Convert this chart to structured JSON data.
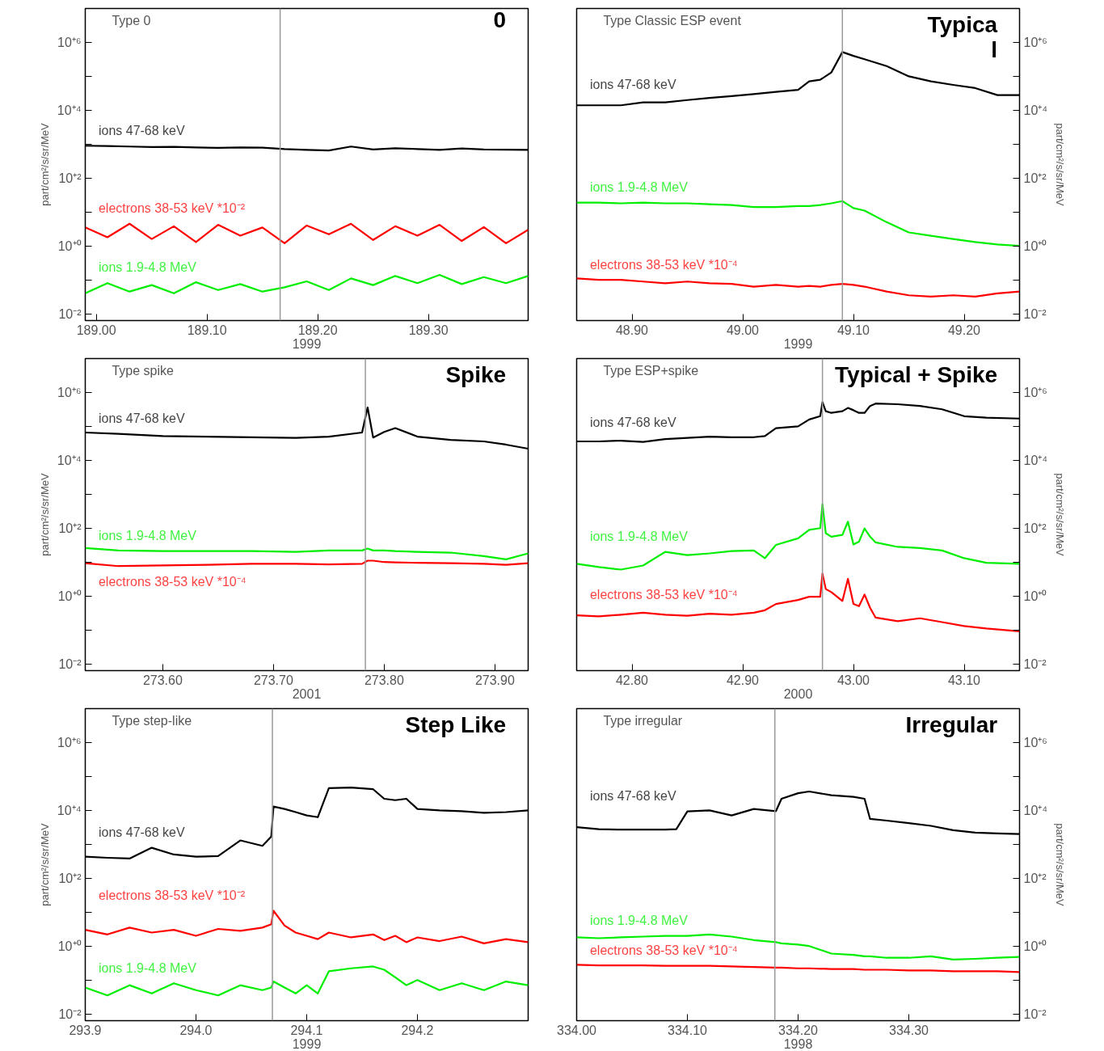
{
  "chart_data": [
    {
      "type": "line",
      "log": "y",
      "xlabel": "1999",
      "ylabel": "part/cm²/s/sr/MeV",
      "annotations": [
        "Type 0",
        "0"
      ],
      "xlim": [
        188.99,
        189.39
      ],
      "xticks": [
        {
          "value": 189.0,
          "label": "189.00"
        },
        {
          "value": 189.1,
          "label": "189.10"
        },
        {
          "value": 189.2,
          "label": "189.20"
        },
        {
          "value": 189.3,
          "label": "189.30"
        }
      ],
      "ylim": [
        0.0063,
        10000000
      ],
      "yticks": [
        {
          "value": 0.01,
          "label": "10⁻²"
        },
        {
          "value": 0.1,
          "label": null
        },
        {
          "value": 1,
          "label": "10⁺⁰"
        },
        {
          "value": 10,
          "label": null
        },
        {
          "value": 100,
          "label": "10⁺²"
        },
        {
          "value": 1000,
          "label": null
        },
        {
          "value": 10000,
          "label": "10⁺⁴"
        },
        {
          "value": 100000,
          "label": null
        },
        {
          "value": 1000000,
          "label": "10⁺⁶"
        }
      ],
      "ref_lines": [
        {
          "axis": "x",
          "value": 189.166,
          "label": null,
          "color": "#999999"
        }
      ],
      "x": [
        188.99,
        189.01,
        189.03,
        189.05,
        189.07,
        189.09,
        189.11,
        189.13,
        189.15,
        189.17,
        189.19,
        189.21,
        189.23,
        189.25,
        189.27,
        189.29,
        189.31,
        189.33,
        189.35,
        189.37,
        189.39
      ],
      "series": [
        {
          "name": "ions 47-68 keV",
          "color": "#000000",
          "values": [
            900,
            880,
            850,
            820,
            830,
            800,
            780,
            800,
            790,
            720,
            680,
            650,
            850,
            700,
            760,
            720,
            680,
            750,
            700,
            690,
            680
          ]
        },
        {
          "name": "electrons 38-53 keV *10⁻²",
          "color": "#ff0000",
          "values": [
            3.5,
            1.8,
            4.5,
            1.6,
            3.8,
            1.3,
            4.2,
            2.0,
            3.5,
            1.2,
            4.0,
            2.2,
            4.5,
            1.5,
            3.8,
            2.0,
            4.2,
            1.4,
            3.6,
            1.2,
            3.0
          ]
        },
        {
          "name": "ions 1.9-4.8 MeV",
          "color": "#00ee00",
          "values": [
            0.04,
            0.08,
            0.045,
            0.07,
            0.04,
            0.085,
            0.05,
            0.075,
            0.045,
            0.06,
            0.09,
            0.05,
            0.11,
            0.07,
            0.13,
            0.08,
            0.14,
            0.075,
            0.12,
            0.08,
            0.13
          ]
        }
      ]
    },
    {
      "type": "line",
      "log": "y",
      "xlabel": "1999",
      "ylabel": "part/cm²/s/sr/MeV",
      "annotations": [
        "Type Classic ESP event",
        "Typica\nl"
      ],
      "xlim": [
        48.85,
        49.25
      ],
      "xticks": [
        {
          "value": 48.9,
          "label": "48.90"
        },
        {
          "value": 49.0,
          "label": "49.00"
        },
        {
          "value": 49.1,
          "label": "49.10"
        },
        {
          "value": 49.2,
          "label": "49.20"
        }
      ],
      "ylim": [
        0.0063,
        10000000
      ],
      "yticks": [
        {
          "value": 0.01,
          "label": "10⁻²"
        },
        {
          "value": 0.1,
          "label": null
        },
        {
          "value": 1,
          "label": "10⁺⁰"
        },
        {
          "value": 10,
          "label": null
        },
        {
          "value": 100,
          "label": "10⁺²"
        },
        {
          "value": 1000,
          "label": null
        },
        {
          "value": 10000,
          "label": "10⁺⁴"
        },
        {
          "value": 100000,
          "label": null
        },
        {
          "value": 1000000,
          "label": "10⁺⁶"
        }
      ],
      "ref_lines": [
        {
          "axis": "x",
          "value": 49.09,
          "label": null,
          "color": "#999999"
        }
      ],
      "x": [
        48.85,
        48.87,
        48.89,
        48.91,
        48.93,
        48.95,
        48.97,
        48.99,
        49.01,
        49.03,
        49.05,
        49.06,
        49.07,
        49.08,
        49.09,
        49.1,
        49.11,
        49.13,
        49.15,
        49.17,
        49.19,
        49.21,
        49.23,
        49.25
      ],
      "series": [
        {
          "name": "ions 47-68 keV",
          "color": "#000000",
          "values": [
            14000,
            14000,
            14000,
            17000,
            17000,
            20000,
            23000,
            26000,
            30000,
            35000,
            40000,
            71000,
            79000,
            130000,
            520000,
            400000,
            320000,
            200000,
            100000,
            71000,
            56000,
            45000,
            28000,
            28000
          ]
        },
        {
          "name": "ions 1.9-4.8 MeV",
          "color": "#00ee00",
          "values": [
            19,
            19,
            18,
            19,
            18,
            18,
            17,
            16,
            14,
            14,
            15,
            15,
            16,
            18,
            21,
            13,
            11,
            5.0,
            2.5,
            2.0,
            1.6,
            1.3,
            1.1,
            1.0
          ]
        },
        {
          "name": "electrons 38-53 keV *10⁻⁴",
          "color": "#ff0000",
          "values": [
            0.11,
            0.1,
            0.1,
            0.089,
            0.079,
            0.089,
            0.079,
            0.076,
            0.063,
            0.071,
            0.063,
            0.066,
            0.063,
            0.071,
            0.076,
            0.071,
            0.063,
            0.045,
            0.035,
            0.032,
            0.035,
            0.032,
            0.04,
            0.045
          ]
        }
      ]
    },
    {
      "type": "line",
      "log": "y",
      "xlabel": "2001",
      "ylabel": "part/cm²/s/sr/MeV",
      "annotations": [
        "Type spike",
        "Spike"
      ],
      "xlim": [
        273.53,
        273.93
      ],
      "xticks": [
        {
          "value": 273.6,
          "label": "273.60"
        },
        {
          "value": 273.7,
          "label": "273.70"
        },
        {
          "value": 273.8,
          "label": "273.80"
        },
        {
          "value": 273.9,
          "label": "273.90"
        }
      ],
      "ylim": [
        0.0063,
        10000000
      ],
      "yticks": [
        {
          "value": 0.01,
          "label": "10⁻²"
        },
        {
          "value": 0.1,
          "label": null
        },
        {
          "value": 1,
          "label": "10⁺⁰"
        },
        {
          "value": 10,
          "label": null
        },
        {
          "value": 100,
          "label": "10⁺²"
        },
        {
          "value": 1000,
          "label": null
        },
        {
          "value": 10000,
          "label": "10⁺⁴"
        },
        {
          "value": 100000,
          "label": null
        },
        {
          "value": 1000000,
          "label": "10⁺⁶"
        }
      ],
      "ref_lines": [
        {
          "axis": "x",
          "value": 273.783,
          "label": null,
          "color": "#999999"
        }
      ],
      "x": [
        273.53,
        273.56,
        273.6,
        273.64,
        273.68,
        273.72,
        273.75,
        273.78,
        273.785,
        273.79,
        273.8,
        273.81,
        273.83,
        273.86,
        273.89,
        273.91,
        273.93
      ],
      "series": [
        {
          "name": "ions 47-68 keV",
          "color": "#000000",
          "values": [
            66000,
            60000,
            52000,
            50000,
            48000,
            46000,
            50000,
            66000,
            360000,
            47000,
            69000,
            89000,
            50000,
            40000,
            36000,
            29000,
            22000
          ]
        },
        {
          "name": "ions 1.9-4.8 MeV",
          "color": "#00ee00",
          "values": [
            26,
            22,
            21,
            21,
            21,
            20,
            22,
            22,
            25,
            22,
            22,
            21,
            20,
            19,
            15,
            12,
            18
          ]
        },
        {
          "name": "electrons 38-53 keV *10⁻⁴",
          "color": "#ff0000",
          "values": [
            9.3,
            7.6,
            8.0,
            8.3,
            8.9,
            8.9,
            8.5,
            8.9,
            11,
            11,
            10,
            9.8,
            9.5,
            9.3,
            8.9,
            8.3,
            9.3
          ]
        }
      ]
    },
    {
      "type": "line",
      "log": "y",
      "xlabel": "2000",
      "ylabel": "part/cm²/s/sr/MeV",
      "annotations": [
        "Type ESP+spike",
        "Typical + Spike"
      ],
      "xlim": [
        42.75,
        43.15
      ],
      "xticks": [
        {
          "value": 42.8,
          "label": "42.80"
        },
        {
          "value": 42.9,
          "label": "42.90"
        },
        {
          "value": 43.0,
          "label": "43.00"
        },
        {
          "value": 43.1,
          "label": "43.10"
        }
      ],
      "ylim": [
        0.0063,
        10000000
      ],
      "yticks": [
        {
          "value": 0.01,
          "label": "10⁻²"
        },
        {
          "value": 0.1,
          "label": null
        },
        {
          "value": 1,
          "label": "10⁺⁰"
        },
        {
          "value": 10,
          "label": null
        },
        {
          "value": 100,
          "label": "10⁺²"
        },
        {
          "value": 1000,
          "label": null
        },
        {
          "value": 10000,
          "label": "10⁺⁴"
        },
        {
          "value": 100000,
          "label": null
        },
        {
          "value": 1000000,
          "label": "10⁺⁶"
        }
      ],
      "ref_lines": [
        {
          "axis": "x",
          "value": 42.972,
          "label": null,
          "color": "#999999"
        }
      ],
      "x": [
        42.75,
        42.77,
        42.79,
        42.81,
        42.83,
        42.85,
        42.87,
        42.89,
        42.91,
        42.92,
        42.93,
        42.95,
        42.96,
        42.97,
        42.972,
        42.975,
        42.98,
        42.99,
        42.995,
        43.0,
        43.005,
        43.01,
        43.015,
        43.02,
        43.04,
        43.06,
        43.08,
        43.1,
        43.12,
        43.15
      ],
      "series": [
        {
          "name": "ions 47-68 keV",
          "color": "#000000",
          "values": [
            36000,
            36000,
            38000,
            35000,
            42000,
            46000,
            50000,
            48000,
            48000,
            52000,
            89000,
            100000,
            160000,
            200000,
            520000,
            280000,
            250000,
            280000,
            350000,
            300000,
            250000,
            250000,
            400000,
            470000,
            450000,
            400000,
            320000,
            200000,
            180000,
            170000
          ]
        },
        {
          "name": "ions 1.9-4.8 MeV",
          "color": "#00ee00",
          "values": [
            8.9,
            7.1,
            6.0,
            7.9,
            20,
            16,
            18,
            21,
            22,
            13,
            32,
            50,
            89,
            100,
            510,
            71,
            56,
            63,
            155,
            33,
            40,
            98,
            56,
            38,
            28,
            26,
            22,
            13,
            9.5,
            8.9
          ]
        },
        {
          "name": "electrons 38-53 keV *10⁻⁴",
          "color": "#ff0000",
          "values": [
            0.27,
            0.25,
            0.28,
            0.32,
            0.28,
            0.26,
            0.3,
            0.28,
            0.32,
            0.38,
            0.58,
            0.76,
            0.95,
            0.95,
            4.6,
            1.6,
            1.3,
            0.71,
            3.2,
            0.58,
            0.5,
            1.1,
            0.45,
            0.23,
            0.18,
            0.22,
            0.17,
            0.13,
            0.11,
            0.091
          ]
        }
      ]
    },
    {
      "type": "line",
      "log": "y",
      "xlabel": "1999",
      "ylabel": "part/cm²/s/sr/MeV",
      "annotations": [
        "Type step-like",
        "Step Like"
      ],
      "xlim": [
        293.9,
        294.3
      ],
      "xticks": [
        {
          "value": 293.9,
          "label": "293.9"
        },
        {
          "value": 294.0,
          "label": "294.0"
        },
        {
          "value": 294.1,
          "label": "294.1"
        },
        {
          "value": 294.2,
          "label": "294.2"
        }
      ],
      "ylim": [
        0.0063,
        10000000
      ],
      "yticks": [
        {
          "value": 0.01,
          "label": "10⁻²"
        },
        {
          "value": 0.1,
          "label": null
        },
        {
          "value": 1,
          "label": "10⁺⁰"
        },
        {
          "value": 10,
          "label": null
        },
        {
          "value": 100,
          "label": "10⁺²"
        },
        {
          "value": 1000,
          "label": null
        },
        {
          "value": 10000,
          "label": "10⁺⁴"
        },
        {
          "value": 100000,
          "label": null
        },
        {
          "value": 1000000,
          "label": "10⁺⁶"
        }
      ],
      "ref_lines": [
        {
          "axis": "x",
          "value": 294.069,
          "label": null,
          "color": "#999999"
        }
      ],
      "x": [
        293.9,
        293.92,
        293.94,
        293.96,
        293.98,
        294.0,
        294.02,
        294.04,
        294.06,
        294.068,
        294.07,
        294.08,
        294.09,
        294.1,
        294.11,
        294.12,
        294.14,
        294.16,
        294.17,
        294.18,
        294.19,
        294.2,
        294.22,
        294.24,
        294.26,
        294.28,
        294.3
      ],
      "series": [
        {
          "name": "ions 47-68 keV",
          "color": "#000000",
          "values": [
            430,
            400,
            380,
            790,
            500,
            430,
            450,
            1300,
            900,
            1700,
            13000,
            11000,
            8900,
            7100,
            6300,
            45000,
            47000,
            42000,
            22000,
            20000,
            22000,
            11000,
            10000,
            9500,
            8500,
            8900,
            10000
          ]
        },
        {
          "name": "electrons 38-53 keV *10⁻²",
          "color": "#ff0000",
          "values": [
            3.0,
            2.2,
            3.5,
            2.5,
            3.0,
            2.0,
            3.2,
            2.8,
            3.5,
            4.4,
            11,
            4.0,
            2.5,
            2.0,
            1.6,
            2.5,
            1.8,
            2.2,
            1.5,
            2.0,
            1.3,
            1.8,
            1.4,
            1.9,
            1.2,
            1.6,
            1.3
          ]
        },
        {
          "name": "ions 1.9-4.8 MeV",
          "color": "#00ee00",
          "values": [
            0.06,
            0.035,
            0.07,
            0.04,
            0.08,
            0.05,
            0.035,
            0.07,
            0.05,
            0.06,
            0.09,
            0.06,
            0.04,
            0.07,
            0.04,
            0.18,
            0.22,
            0.25,
            0.2,
            0.12,
            0.07,
            0.1,
            0.05,
            0.08,
            0.05,
            0.09,
            0.07
          ]
        }
      ]
    },
    {
      "type": "line",
      "log": "y",
      "xlabel": "1998",
      "ylabel": "part/cm²/s/sr/MeV",
      "annotations": [
        "Type irregular",
        "Irregular"
      ],
      "xlim": [
        334.0,
        334.4
      ],
      "xticks": [
        {
          "value": 334.0,
          "label": "334.00"
        },
        {
          "value": 334.1,
          "label": "334.10"
        },
        {
          "value": 334.2,
          "label": "334.20"
        },
        {
          "value": 334.3,
          "label": "334.30"
        }
      ],
      "ylim": [
        0.0063,
        10000000
      ],
      "yticks": [
        {
          "value": 0.01,
          "label": "10⁻²"
        },
        {
          "value": 0.1,
          "label": null
        },
        {
          "value": 1,
          "label": "10⁺⁰"
        },
        {
          "value": 10,
          "label": null
        },
        {
          "value": 100,
          "label": "10⁺²"
        },
        {
          "value": 1000,
          "label": null
        },
        {
          "value": 10000,
          "label": "10⁺⁴"
        },
        {
          "value": 100000,
          "label": null
        },
        {
          "value": 1000000,
          "label": "10⁺⁶"
        }
      ],
      "ref_lines": [
        {
          "axis": "x",
          "value": 334.179,
          "label": null,
          "color": "#999999"
        }
      ],
      "x": [
        334.0,
        334.02,
        334.04,
        334.06,
        334.08,
        334.09,
        334.1,
        334.12,
        334.14,
        334.16,
        334.18,
        334.185,
        334.2,
        334.21,
        334.23,
        334.25,
        334.26,
        334.265,
        334.28,
        334.3,
        334.32,
        334.34,
        334.36,
        334.38,
        334.4
      ],
      "series": [
        {
          "name": "ions 47-68 keV",
          "color": "#000000",
          "values": [
            3200,
            2800,
            2700,
            2700,
            2700,
            2800,
            9300,
            10000,
            7100,
            11000,
            9500,
            22000,
            32000,
            36000,
            28000,
            25000,
            22000,
            5600,
            5000,
            4200,
            3500,
            2600,
            2200,
            2100,
            2000
          ]
        },
        {
          "name": "ions 1.9-4.8 MeV",
          "color": "#00ee00",
          "values": [
            1.8,
            1.7,
            1.8,
            1.9,
            2.0,
            2.0,
            2.0,
            2.2,
            1.9,
            1.5,
            1.3,
            1.2,
            1.1,
            1.0,
            0.6,
            0.55,
            0.5,
            0.5,
            0.45,
            0.45,
            0.5,
            0.4,
            0.42,
            0.45,
            0.48
          ]
        },
        {
          "name": "electrons 38-53 keV *10⁻⁴",
          "color": "#ff0000",
          "values": [
            0.28,
            0.27,
            0.27,
            0.27,
            0.26,
            0.26,
            0.26,
            0.26,
            0.25,
            0.24,
            0.23,
            0.23,
            0.22,
            0.22,
            0.21,
            0.21,
            0.2,
            0.2,
            0.2,
            0.19,
            0.19,
            0.18,
            0.18,
            0.18,
            0.17
          ]
        }
      ]
    }
  ]
}
